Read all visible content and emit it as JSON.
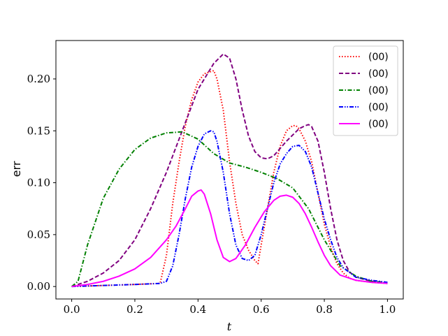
{
  "chart_data": {
    "type": "line",
    "title": "",
    "xlabel": "t",
    "ylabel": "err",
    "xlim": [
      -0.05,
      1.05
    ],
    "ylim": [
      -0.012,
      0.237
    ],
    "xticks": [
      0.0,
      0.2,
      0.4,
      0.6,
      0.8,
      1.0
    ],
    "xtick_labels": [
      "0.0",
      "0.2",
      "0.4",
      "0.6",
      "0.8",
      "1.0"
    ],
    "yticks": [
      0.0,
      0.05,
      0.1,
      0.15,
      0.2
    ],
    "ytick_labels": [
      "0.00",
      "0.05",
      "0.10",
      "0.15",
      "0.20"
    ],
    "grid": false,
    "legend_position": "top-right",
    "series": [
      {
        "name": "(00)",
        "color": "#ff0000",
        "style": "dotted",
        "x": [
          0.0,
          0.1,
          0.2,
          0.28,
          0.3,
          0.32,
          0.34,
          0.36,
          0.38,
          0.4,
          0.42,
          0.44,
          0.45,
          0.46,
          0.48,
          0.5,
          0.52,
          0.54,
          0.56,
          0.58,
          0.59,
          0.6,
          0.62,
          0.64,
          0.66,
          0.68,
          0.7,
          0.71,
          0.72,
          0.74,
          0.76,
          0.78,
          0.8,
          0.82,
          0.84,
          0.86,
          0.88,
          0.9,
          0.95,
          1.0
        ],
        "y": [
          0.0,
          0.001,
          0.002,
          0.003,
          0.03,
          0.08,
          0.12,
          0.155,
          0.18,
          0.197,
          0.205,
          0.207,
          0.208,
          0.2,
          0.17,
          0.12,
          0.08,
          0.05,
          0.035,
          0.025,
          0.022,
          0.04,
          0.075,
          0.11,
          0.135,
          0.15,
          0.155,
          0.155,
          0.152,
          0.14,
          0.12,
          0.09,
          0.06,
          0.038,
          0.022,
          0.013,
          0.008,
          0.006,
          0.004,
          0.003
        ]
      },
      {
        "name": "(00)",
        "color": "#800080",
        "style": "dashed",
        "x": [
          0.0,
          0.05,
          0.1,
          0.15,
          0.2,
          0.25,
          0.3,
          0.35,
          0.4,
          0.45,
          0.48,
          0.5,
          0.52,
          0.54,
          0.56,
          0.58,
          0.6,
          0.62,
          0.64,
          0.66,
          0.68,
          0.7,
          0.72,
          0.74,
          0.75,
          0.76,
          0.78,
          0.8,
          0.82,
          0.84,
          0.86,
          0.88,
          0.9,
          0.95,
          1.0
        ],
        "y": [
          0.0,
          0.005,
          0.013,
          0.025,
          0.045,
          0.075,
          0.11,
          0.15,
          0.19,
          0.215,
          0.224,
          0.22,
          0.2,
          0.17,
          0.145,
          0.13,
          0.124,
          0.123,
          0.126,
          0.133,
          0.14,
          0.146,
          0.152,
          0.155,
          0.156,
          0.154,
          0.14,
          0.11,
          0.075,
          0.045,
          0.025,
          0.014,
          0.009,
          0.005,
          0.004
        ]
      },
      {
        "name": "(00)",
        "color": "#008000",
        "style": "dashdot",
        "x": [
          0.0,
          0.02,
          0.05,
          0.1,
          0.15,
          0.2,
          0.25,
          0.3,
          0.35,
          0.4,
          0.45,
          0.5,
          0.55,
          0.6,
          0.65,
          0.7,
          0.75,
          0.8,
          0.85,
          0.9,
          0.95,
          1.0
        ],
        "y": [
          0.0,
          0.005,
          0.04,
          0.085,
          0.113,
          0.132,
          0.143,
          0.148,
          0.149,
          0.142,
          0.128,
          0.119,
          0.115,
          0.11,
          0.104,
          0.095,
          0.075,
          0.045,
          0.02,
          0.01,
          0.005,
          0.003
        ]
      },
      {
        "name": "(00)",
        "color": "#0000ff",
        "style": "dashdotdot",
        "x": [
          0.0,
          0.1,
          0.2,
          0.28,
          0.3,
          0.32,
          0.34,
          0.36,
          0.38,
          0.4,
          0.42,
          0.44,
          0.45,
          0.46,
          0.48,
          0.5,
          0.52,
          0.54,
          0.56,
          0.58,
          0.6,
          0.62,
          0.64,
          0.66,
          0.68,
          0.7,
          0.72,
          0.74,
          0.76,
          0.78,
          0.8,
          0.82,
          0.84,
          0.86,
          0.9,
          0.95,
          1.0
        ],
        "y": [
          0.0,
          0.001,
          0.002,
          0.003,
          0.005,
          0.02,
          0.05,
          0.085,
          0.115,
          0.135,
          0.147,
          0.15,
          0.149,
          0.14,
          0.11,
          0.07,
          0.04,
          0.027,
          0.025,
          0.03,
          0.05,
          0.075,
          0.1,
          0.118,
          0.128,
          0.135,
          0.136,
          0.13,
          0.115,
          0.09,
          0.065,
          0.045,
          0.028,
          0.018,
          0.009,
          0.006,
          0.004
        ]
      },
      {
        "name": "(00)",
        "color": "#ff00ff",
        "style": "solid",
        "x": [
          0.0,
          0.05,
          0.1,
          0.15,
          0.2,
          0.25,
          0.3,
          0.33,
          0.36,
          0.38,
          0.4,
          0.41,
          0.42,
          0.44,
          0.46,
          0.48,
          0.5,
          0.52,
          0.55,
          0.58,
          0.61,
          0.64,
          0.66,
          0.68,
          0.7,
          0.72,
          0.74,
          0.76,
          0.78,
          0.8,
          0.82,
          0.85,
          0.9,
          0.95,
          1.0
        ],
        "y": [
          0.0,
          0.002,
          0.005,
          0.01,
          0.017,
          0.028,
          0.045,
          0.058,
          0.075,
          0.087,
          0.092,
          0.093,
          0.089,
          0.07,
          0.045,
          0.028,
          0.024,
          0.027,
          0.04,
          0.057,
          0.072,
          0.083,
          0.087,
          0.088,
          0.086,
          0.08,
          0.07,
          0.057,
          0.043,
          0.03,
          0.02,
          0.011,
          0.006,
          0.004,
          0.003
        ]
      }
    ]
  }
}
